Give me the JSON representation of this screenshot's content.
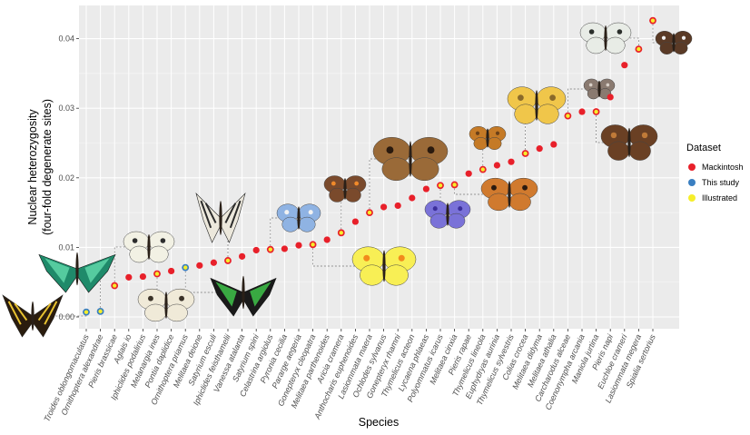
{
  "chart_data": {
    "type": "scatter",
    "title": "",
    "xlabel": "Species",
    "ylabel_line1": "Nuclear heterozygosity",
    "ylabel_line2": "(four-fold degenerate sites)",
    "ylim": [
      -0.002,
      0.044
    ],
    "yticks": [
      0.0,
      0.01,
      0.02,
      0.03,
      0.04
    ],
    "ytick_labels": [
      "0.00",
      "0.01",
      "0.02",
      "0.03",
      "0.04"
    ],
    "grid": true,
    "legend": {
      "title": "Dataset",
      "position": "right",
      "entries": [
        {
          "label": "Mackintosh",
          "color": "#e8202a"
        },
        {
          "label": "This study",
          "color": "#3a7fc1"
        },
        {
          "label": "Illustrated",
          "color": "#f6ee2a"
        }
      ]
    },
    "colors": {
      "Mackintosh": "#e8202a",
      "This study": "#3a7fc1",
      "Illustrated": "#f6ee2a",
      "panel": "#ebebeb"
    },
    "points": [
      {
        "species": "Troides oblongomaculatus",
        "value": 0.0007,
        "dataset": "This study",
        "illustrated": true
      },
      {
        "species": "Ornithoptera alexandrae",
        "value": 0.0008,
        "dataset": "This study",
        "illustrated": true
      },
      {
        "species": "Pieris brassicae",
        "value": 0.0045,
        "dataset": "Mackintosh",
        "illustrated": true
      },
      {
        "species": "Aglais io",
        "value": 0.0057,
        "dataset": "Mackintosh",
        "illustrated": false
      },
      {
        "species": "Iphiclides podalirius",
        "value": 0.0058,
        "dataset": "Mackintosh",
        "illustrated": false
      },
      {
        "species": "Melanargia ines",
        "value": 0.0062,
        "dataset": "Mackintosh",
        "illustrated": true
      },
      {
        "species": "Pontia daplidice",
        "value": 0.0066,
        "dataset": "Mackintosh",
        "illustrated": false
      },
      {
        "species": "Ornithoptera priamus",
        "value": 0.0071,
        "dataset": "This study",
        "illustrated": true
      },
      {
        "species": "Melitaea deione",
        "value": 0.0074,
        "dataset": "Mackintosh",
        "illustrated": false
      },
      {
        "species": "Satyrium esculi",
        "value": 0.0078,
        "dataset": "Mackintosh",
        "illustrated": false
      },
      {
        "species": "Iphiclides feisthamelii",
        "value": 0.0081,
        "dataset": "Mackintosh",
        "illustrated": true
      },
      {
        "species": "Vanessa atalanta",
        "value": 0.0087,
        "dataset": "Mackintosh",
        "illustrated": false
      },
      {
        "species": "Satyrium spini",
        "value": 0.0096,
        "dataset": "Mackintosh",
        "illustrated": false
      },
      {
        "species": "Celastrina argiolus",
        "value": 0.0097,
        "dataset": "Mackintosh",
        "illustrated": true
      },
      {
        "species": "Pyronia cecilia",
        "value": 0.0098,
        "dataset": "Mackintosh",
        "illustrated": false
      },
      {
        "species": "Pararge aegeria",
        "value": 0.0103,
        "dataset": "Mackintosh",
        "illustrated": false
      },
      {
        "species": "Gonepteryx cleopatra",
        "value": 0.0104,
        "dataset": "Mackintosh",
        "illustrated": true
      },
      {
        "species": "Melitaea parthenoides",
        "value": 0.0111,
        "dataset": "Mackintosh",
        "illustrated": false
      },
      {
        "species": "Aricia cramera",
        "value": 0.0121,
        "dataset": "Mackintosh",
        "illustrated": true
      },
      {
        "species": "Anthocharis euphenoides",
        "value": 0.0137,
        "dataset": "Mackintosh",
        "illustrated": false
      },
      {
        "species": "Lasiommata maera",
        "value": 0.015,
        "dataset": "Mackintosh",
        "illustrated": true
      },
      {
        "species": "Ochlodes sylvanus",
        "value": 0.0158,
        "dataset": "Mackintosh",
        "illustrated": false
      },
      {
        "species": "Gonepteryx rhamni",
        "value": 0.016,
        "dataset": "Mackintosh",
        "illustrated": false
      },
      {
        "species": "Thymelicus acteon",
        "value": 0.0171,
        "dataset": "Mackintosh",
        "illustrated": false
      },
      {
        "species": "Lycaena phlaeas",
        "value": 0.0184,
        "dataset": "Mackintosh",
        "illustrated": false
      },
      {
        "species": "Polyommatus icarus",
        "value": 0.0189,
        "dataset": "Mackintosh",
        "illustrated": true
      },
      {
        "species": "Melitaea cinxia",
        "value": 0.019,
        "dataset": "Mackintosh",
        "illustrated": true
      },
      {
        "species": "Pieris rapae",
        "value": 0.0206,
        "dataset": "Mackintosh",
        "illustrated": false
      },
      {
        "species": "Thymelicus lineola",
        "value": 0.0212,
        "dataset": "Mackintosh",
        "illustrated": true
      },
      {
        "species": "Euphydryas aurinia",
        "value": 0.0218,
        "dataset": "Mackintosh",
        "illustrated": false
      },
      {
        "species": "Thymelicus sylvestris",
        "value": 0.0223,
        "dataset": "Mackintosh",
        "illustrated": false
      },
      {
        "species": "Colias crocea",
        "value": 0.0235,
        "dataset": "Mackintosh",
        "illustrated": true
      },
      {
        "species": "Melitaea didyma",
        "value": 0.0242,
        "dataset": "Mackintosh",
        "illustrated": false
      },
      {
        "species": "Melitaea athalia",
        "value": 0.0248,
        "dataset": "Mackintosh",
        "illustrated": false
      },
      {
        "species": "Carcharodus alceae",
        "value": 0.0289,
        "dataset": "Mackintosh",
        "illustrated": true
      },
      {
        "species": "Coenonympha arcania",
        "value": 0.0295,
        "dataset": "Mackintosh",
        "illustrated": false
      },
      {
        "species": "Maniola jurtina",
        "value": 0.0295,
        "dataset": "Mackintosh",
        "illustrated": true
      },
      {
        "species": "Pieris napi",
        "value": 0.0316,
        "dataset": "Mackintosh",
        "illustrated": false
      },
      {
        "species": "Euchloe crameri",
        "value": 0.0362,
        "dataset": "Mackintosh",
        "illustrated": false
      },
      {
        "species": "Lasiommata megera",
        "value": 0.0385,
        "dataset": "Mackintosh",
        "illustrated": true
      },
      {
        "species": "Spialia sertorius",
        "value": 0.0426,
        "dataset": "Mackintosh",
        "illustrated": true
      }
    ],
    "annotations": [
      {
        "name": "troides-oblongomaculatus-photo",
        "species_index": 0,
        "wing": "#2a1c0e",
        "accent": "#e8c230",
        "shape": "swallowtail"
      },
      {
        "name": "ornithoptera-alexandrae-photo",
        "species_index": 1,
        "wing": "#1f8a6a",
        "accent": "#5fd6a8",
        "shape": "birdwing"
      },
      {
        "name": "pieris-brassicae-photo",
        "species_index": 2,
        "wing": "#f2f1e4",
        "accent": "#2c2c2c",
        "shape": "round"
      },
      {
        "name": "melanargia-ines-photo",
        "species_index": 5,
        "wing": "#f0ead8",
        "accent": "#3a3228",
        "shape": "round"
      },
      {
        "name": "ornithoptera-priamus-photo",
        "species_index": 7,
        "wing": "#1a1a1a",
        "accent": "#3fc34a",
        "shape": "birdwing"
      },
      {
        "name": "iphiclides-feisthamelii-photo",
        "species_index": 10,
        "wing": "#ece8dc",
        "accent": "#2b2b2b",
        "shape": "swallowtail"
      },
      {
        "name": "celastrina-argiolus-photo",
        "species_index": 13,
        "wing": "#8fb3e3",
        "accent": "#f2f2f2",
        "shape": "round"
      },
      {
        "name": "gonepteryx-cleopatra-photo",
        "species_index": 16,
        "wing": "#f8ef55",
        "accent": "#f28a1c",
        "shape": "round"
      },
      {
        "name": "aricia-cramera-photo",
        "species_index": 18,
        "wing": "#7a4a2c",
        "accent": "#f08a2a",
        "shape": "round"
      },
      {
        "name": "lasiommata-maera-photo",
        "species_index": 20,
        "wing": "#9a6a38",
        "accent": "#2a1a0e",
        "shape": "round"
      },
      {
        "name": "polyommatus-icarus-photo",
        "species_index": 25,
        "wing": "#7a72d8",
        "accent": "#3c2f9a",
        "shape": "round"
      },
      {
        "name": "melitaea-cinxia-photo",
        "species_index": 26,
        "wing": "#d07a2e",
        "accent": "#2a1a10",
        "shape": "round"
      },
      {
        "name": "thymelicus-lineola-photo",
        "species_index": 28,
        "wing": "#c57a26",
        "accent": "#6a4018",
        "shape": "round"
      },
      {
        "name": "colias-crocea-photo",
        "species_index": 31,
        "wing": "#f0c64a",
        "accent": "#8a6a2a",
        "shape": "round"
      },
      {
        "name": "carcharodus-alceae-photo",
        "species_index": 34,
        "wing": "#8a7a70",
        "accent": "#d8cfc6",
        "shape": "round"
      },
      {
        "name": "maniola-jurtina-photo",
        "species_index": 36,
        "wing": "#6a4024",
        "accent": "#c07a38",
        "shape": "round"
      },
      {
        "name": "lasiommata-megera-photo",
        "species_index": 39,
        "wing": "#e8ece6",
        "accent": "#2b2f2b",
        "shape": "round"
      },
      {
        "name": "spialia-sertorius-photo",
        "species_index": 40,
        "wing": "#5a3a26",
        "accent": "#f0f0f0",
        "shape": "round"
      }
    ]
  }
}
